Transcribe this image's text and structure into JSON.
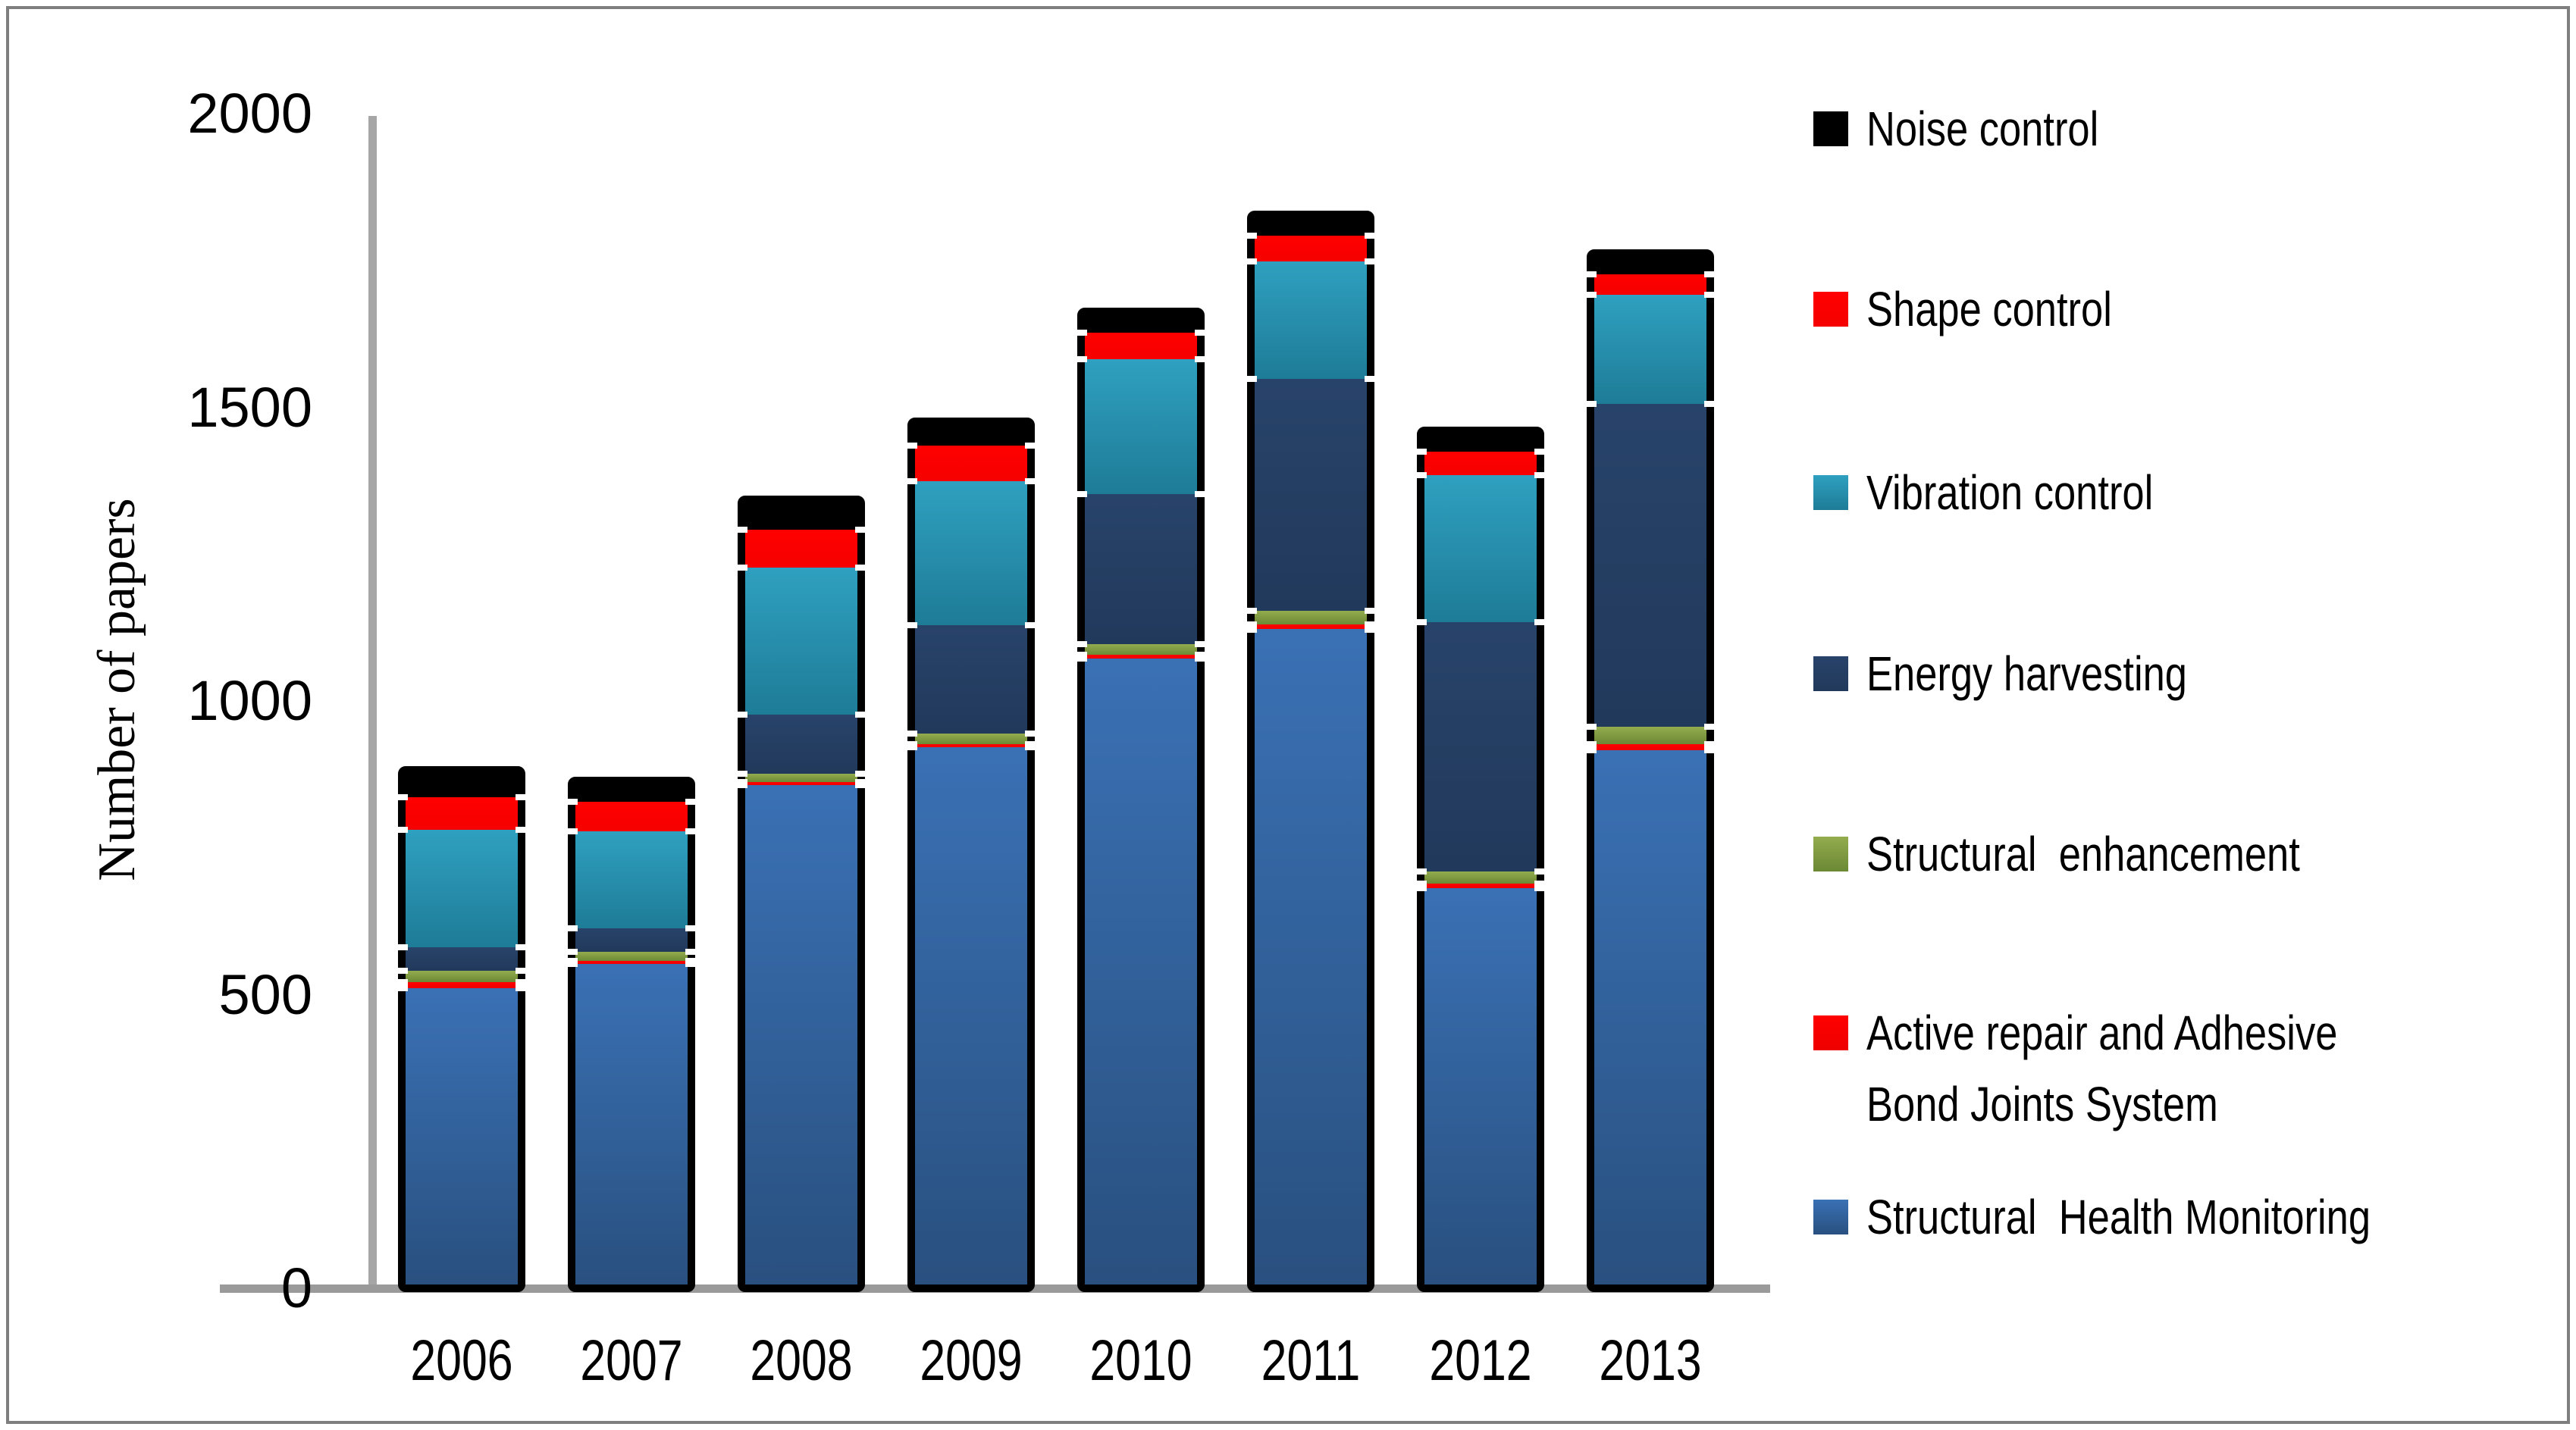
{
  "y_axis": {
    "title": "Number of papers",
    "ticks": [
      {
        "label": "2000",
        "value": 2000
      },
      {
        "label": "1500",
        "value": 1500
      },
      {
        "label": "1000",
        "value": 1000
      },
      {
        "label": "500",
        "value": 500
      },
      {
        "label": "0",
        "value": 0
      }
    ]
  },
  "legend": [
    {
      "label": "Noise control",
      "series": "noise"
    },
    {
      "label": "Shape control",
      "series": "shape"
    },
    {
      "label": "Vibration control",
      "series": "vibration"
    },
    {
      "label": "Energy harvesting",
      "series": "energy"
    },
    {
      "label": "Structural  enhancement",
      "series": "enhancement"
    },
    {
      "label": "Active repair and Adhesive Bond Joints System",
      "series": "active_repair"
    },
    {
      "label": "Structural  Health Monitoring",
      "series": "shm"
    }
  ],
  "chart_data": {
    "type": "bar",
    "stacked": true,
    "title": "",
    "xlabel": "",
    "ylabel": "Number of papers",
    "ylim": [
      0,
      2000
    ],
    "grid": false,
    "legend_position": "right",
    "categories": [
      "2006",
      "2007",
      "2008",
      "2009",
      "2010",
      "2011",
      "2012",
      "2013"
    ],
    "series": [
      {
        "name": "Structural  Health Monitoring",
        "key": "shm",
        "color": {
          "top": "#3A71B5",
          "bottom": "#29507F"
        },
        "values": [
          505,
          545,
          850,
          915,
          1065,
          1115,
          675,
          910
        ]
      },
      {
        "name": "Active repair and Adhesive Bond Joints System",
        "key": "active_repair",
        "color": {
          "top": "#FF0000",
          "bottom": "#EE0000"
        },
        "values": [
          10,
          6,
          5,
          5,
          7,
          8,
          8,
          10
        ]
      },
      {
        "name": "Structural  enhancement",
        "key": "enhancement",
        "color": {
          "top": "#93AC4E",
          "bottom": "#6B8834"
        },
        "values": [
          20,
          15,
          15,
          18,
          18,
          24,
          20,
          30
        ]
      },
      {
        "name": "Energy harvesting",
        "key": "energy",
        "color": {
          "top": "#28436A",
          "bottom": "#21395B"
        },
        "values": [
          40,
          40,
          100,
          185,
          255,
          395,
          425,
          550
        ]
      },
      {
        "name": "Vibration control",
        "key": "vibration",
        "color": {
          "top": "#2FA0C0",
          "bottom": "#1E7C97"
        },
        "values": [
          200,
          165,
          250,
          245,
          230,
          200,
          250,
          185
        ]
      },
      {
        "name": "Shape control",
        "key": "shape",
        "color": {
          "top": "#FF0000",
          "bottom": "#F50000"
        },
        "values": [
          55,
          50,
          65,
          60,
          45,
          43,
          40,
          35
        ]
      },
      {
        "name": "Noise control",
        "key": "noise",
        "color": {
          "top": "#000000",
          "bottom": "#000000"
        },
        "values": [
          40,
          30,
          45,
          35,
          30,
          30,
          30,
          30
        ]
      }
    ]
  },
  "colors": {
    "axis_line": "#A6A6A6",
    "baseline": "#9A9A9A",
    "figure_border": "#7F7F7F",
    "bar_outline": "#000000"
  },
  "legend_chip_colors": {
    "noise": {
      "top": "#000000",
      "bottom": "#000000"
    },
    "shape": {
      "top": "#FF0000",
      "bottom": "#F50000"
    },
    "vibration": {
      "top": "#2FA0C0",
      "bottom": "#1E7C97"
    },
    "energy": {
      "top": "#28436A",
      "bottom": "#21395B"
    },
    "enhancement": {
      "top": "#93AC4E",
      "bottom": "#6B8834"
    },
    "active_repair": {
      "top": "#FF0000",
      "bottom": "#EE0000"
    },
    "shm": {
      "top": "#3A71B5",
      "bottom": "#29507F"
    }
  }
}
